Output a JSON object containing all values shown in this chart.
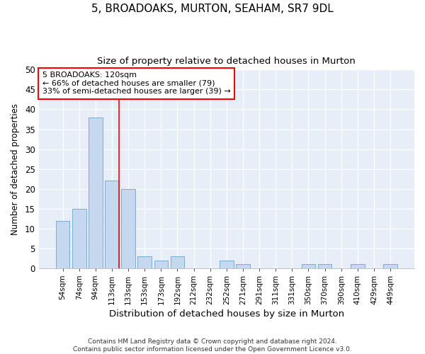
{
  "title": "5, BROADOAKS, MURTON, SEAHAM, SR7 9DL",
  "subtitle": "Size of property relative to detached houses in Murton",
  "xlabel": "Distribution of detached houses by size in Murton",
  "ylabel": "Number of detached properties",
  "categories": [
    "54sqm",
    "74sqm",
    "94sqm",
    "113sqm",
    "133sqm",
    "153sqm",
    "173sqm",
    "192sqm",
    "212sqm",
    "232sqm",
    "252sqm",
    "271sqm",
    "291sqm",
    "311sqm",
    "331sqm",
    "350sqm",
    "370sqm",
    "390sqm",
    "410sqm",
    "429sqm",
    "449sqm"
  ],
  "values": [
    12,
    15,
    38,
    22,
    20,
    3,
    2,
    3,
    0,
    0,
    2,
    1,
    0,
    0,
    0,
    1,
    1,
    0,
    1,
    0,
    1
  ],
  "bar_color": "#c5d8f0",
  "bar_edge_color": "#7aadd4",
  "vline_x_index": 3,
  "vline_color": "red",
  "ylim": [
    0,
    50
  ],
  "yticks": [
    0,
    5,
    10,
    15,
    20,
    25,
    30,
    35,
    40,
    45,
    50
  ],
  "annotation_title": "5 BROADOAKS: 120sqm",
  "annotation_line1": "← 66% of detached houses are smaller (79)",
  "annotation_line2": "33% of semi-detached houses are larger (39) →",
  "annotation_box_color": "white",
  "annotation_box_edge": "red",
  "footer_line1": "Contains HM Land Registry data © Crown copyright and database right 2024.",
  "footer_line2": "Contains public sector information licensed under the Open Government Licence v3.0.",
  "fig_bg_color": "#ffffff",
  "plot_bg_color": "#e8eef8"
}
